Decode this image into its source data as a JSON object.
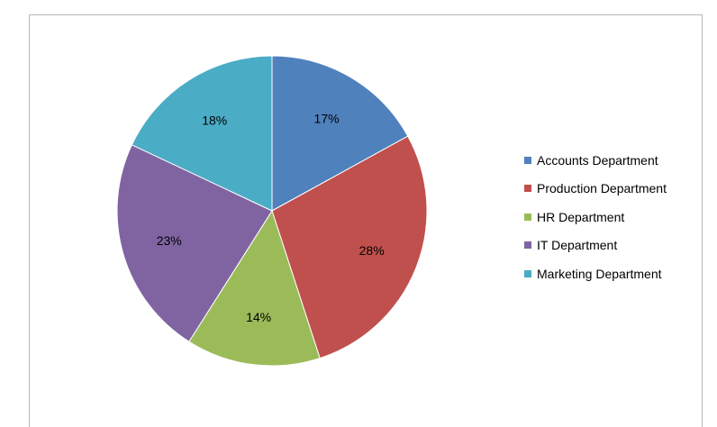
{
  "chart_data": {
    "type": "pie",
    "categories": [
      "Accounts Department",
      "Production Department",
      "HR Department",
      "IT Department",
      "Marketing Department"
    ],
    "values": [
      17,
      28,
      14,
      23,
      18
    ],
    "labels": [
      "17%",
      "28%",
      "14%",
      "23%",
      "18%"
    ],
    "colors": [
      "#4f81bd",
      "#c0504d",
      "#9bbb59",
      "#8064a2",
      "#4bacc6"
    ],
    "legend_position": "right",
    "start_angle": "12 o'clock",
    "direction": "clockwise"
  },
  "legend": {
    "items": [
      {
        "label": "Accounts Department",
        "color": "#4f81bd"
      },
      {
        "label": "Production Department",
        "color": "#c0504d"
      },
      {
        "label": "HR Department",
        "color": "#9bbb59"
      },
      {
        "label": "IT Department",
        "color": "#8064a2"
      },
      {
        "label": "Marketing Department",
        "color": "#4bacc6"
      }
    ]
  }
}
